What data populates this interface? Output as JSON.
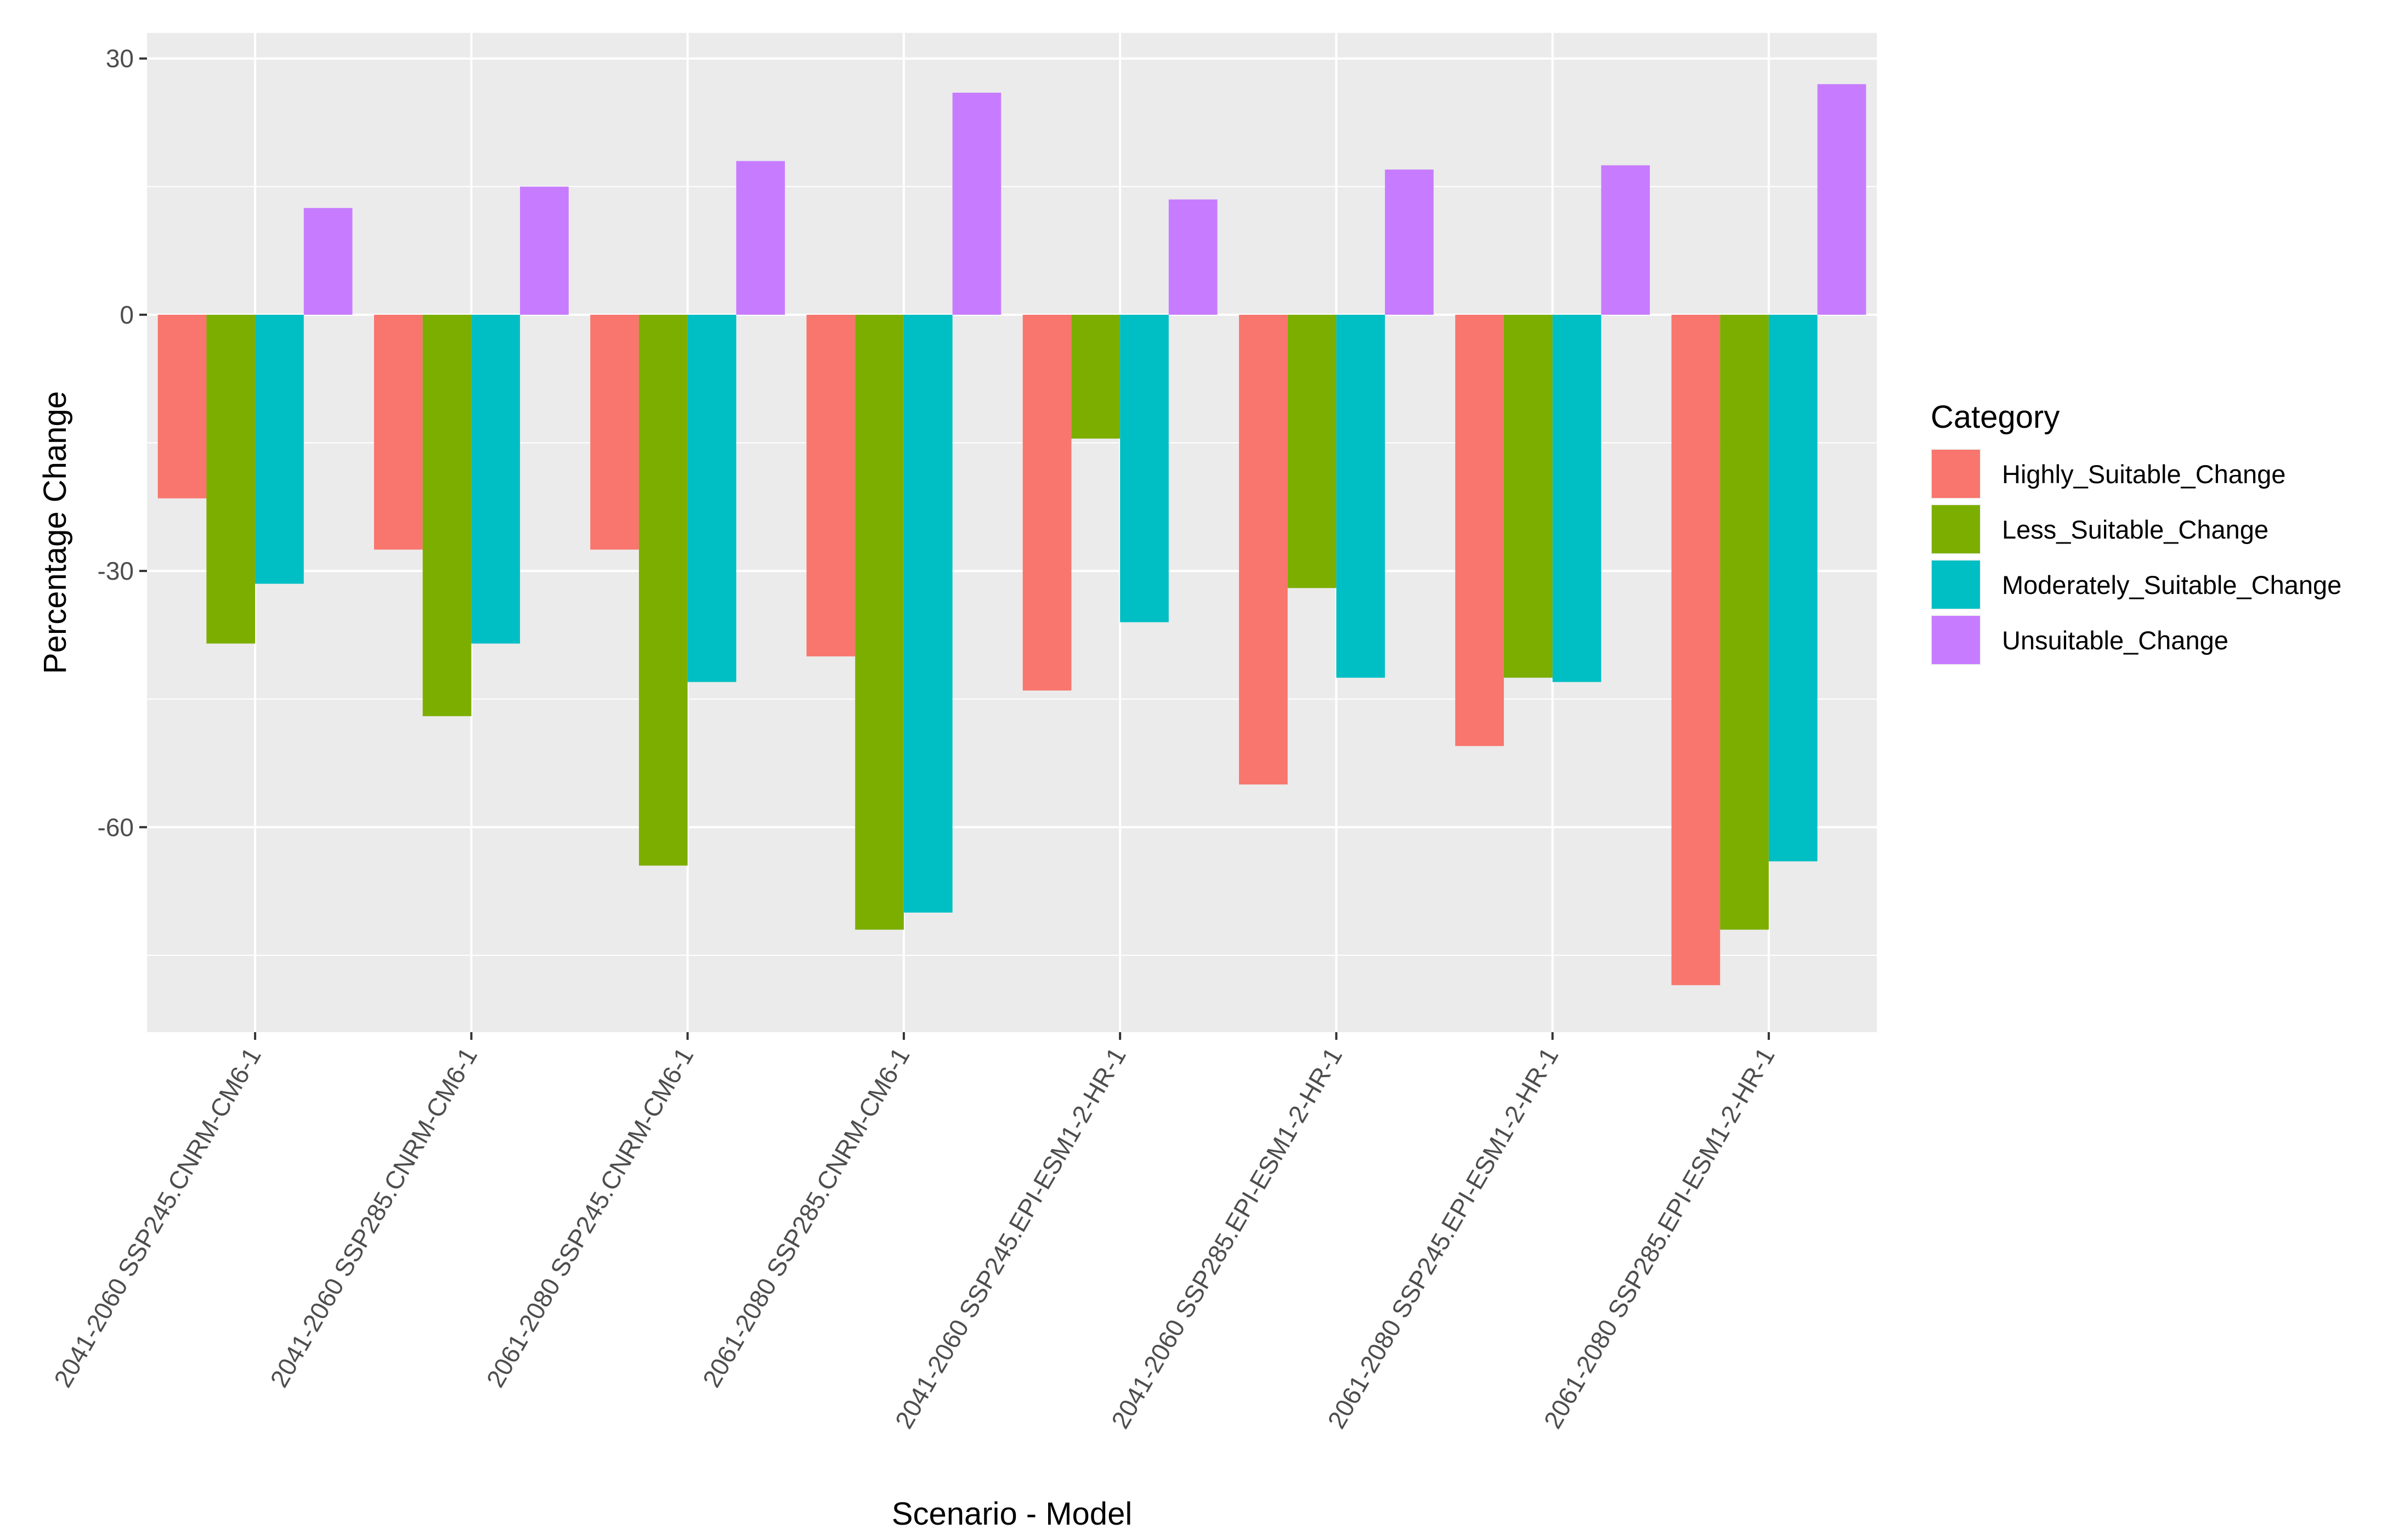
{
  "chart_data": {
    "type": "bar",
    "title": "",
    "xlabel": "Scenario - Model",
    "ylabel": "Percentage Change",
    "ylim": [
      -84,
      33
    ],
    "yticks": [
      -60,
      -30,
      0,
      30
    ],
    "grid": true,
    "legend": {
      "title": "Category",
      "placement": "right"
    },
    "categories": [
      "2041-2060 SSP245.CNRM-CM6-1",
      "2041-2060 SSP285.CNRM-CM6-1",
      "2061-2080 SSP245.CNRM-CM6-1",
      "2061-2080 SSP285.CNRM-CM6-1",
      "2041-2060 SSP245.EPI-ESM1-2-HR-1",
      "2041-2060 SSP285.EPI-ESM1-2-HR-1",
      "2061-2080 SSP245.EPI-ESM1-2-HR-1",
      "2061-2080 SSP285.EPI-ESM1-2-HR-1"
    ],
    "series": [
      {
        "name": "Highly_Suitable_Change",
        "color": "#F8766D",
        "values": [
          -21.5,
          -27.5,
          -27.5,
          -40,
          -44,
          -55,
          -50.5,
          -78.5
        ]
      },
      {
        "name": "Less_Suitable_Change",
        "color": "#7CAE00",
        "values": [
          -38.5,
          -47,
          -64.5,
          -72,
          -14.5,
          -32,
          -42.5,
          -72
        ]
      },
      {
        "name": "Moderately_Suitable_Change",
        "color": "#00BFC4",
        "values": [
          -31.5,
          -38.5,
          -43,
          -70,
          -36,
          -42.5,
          -43,
          -64
        ]
      },
      {
        "name": "Unsuitable_Change",
        "color": "#C77CFF",
        "values": [
          12.5,
          15,
          18,
          26,
          13.5,
          17,
          17.5,
          27
        ]
      }
    ]
  }
}
